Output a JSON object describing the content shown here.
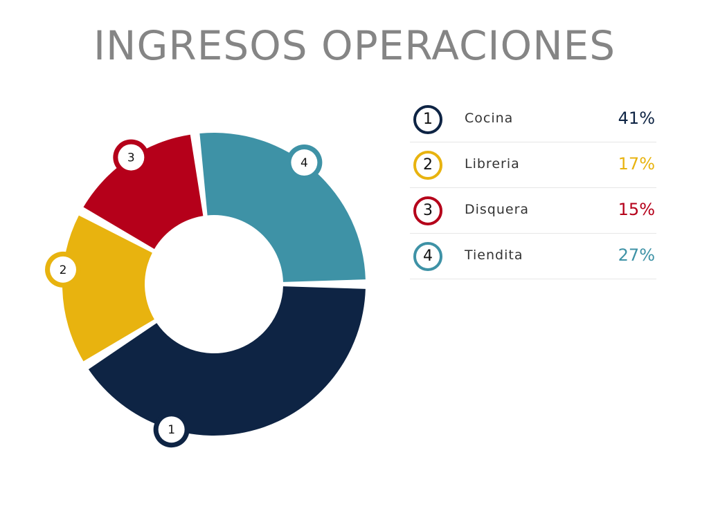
{
  "title": "INGRESOS OPERACIONES",
  "colors": {
    "navy": "#0e2444",
    "yellow": "#e8b30f",
    "red": "#b5001a",
    "teal": "#3e92a6",
    "title_gray": "#858585"
  },
  "chart_data": {
    "type": "pie",
    "variant": "donut",
    "title": "INGRESOS OPERACIONES",
    "legend_position": "right",
    "slices": [
      {
        "marker": "1",
        "label": "Cocina",
        "value": 41,
        "value_label": "41%",
        "color": "#0e2444"
      },
      {
        "marker": "2",
        "label": "Libreria",
        "value": 17,
        "value_label": "17%",
        "color": "#e8b30f"
      },
      {
        "marker": "3",
        "label": "Disquera",
        "value": 15,
        "value_label": "15%",
        "color": "#b5001a"
      },
      {
        "marker": "4",
        "label": "Tiendita",
        "value": 27,
        "value_label": "27%",
        "color": "#3e92a6"
      }
    ]
  }
}
